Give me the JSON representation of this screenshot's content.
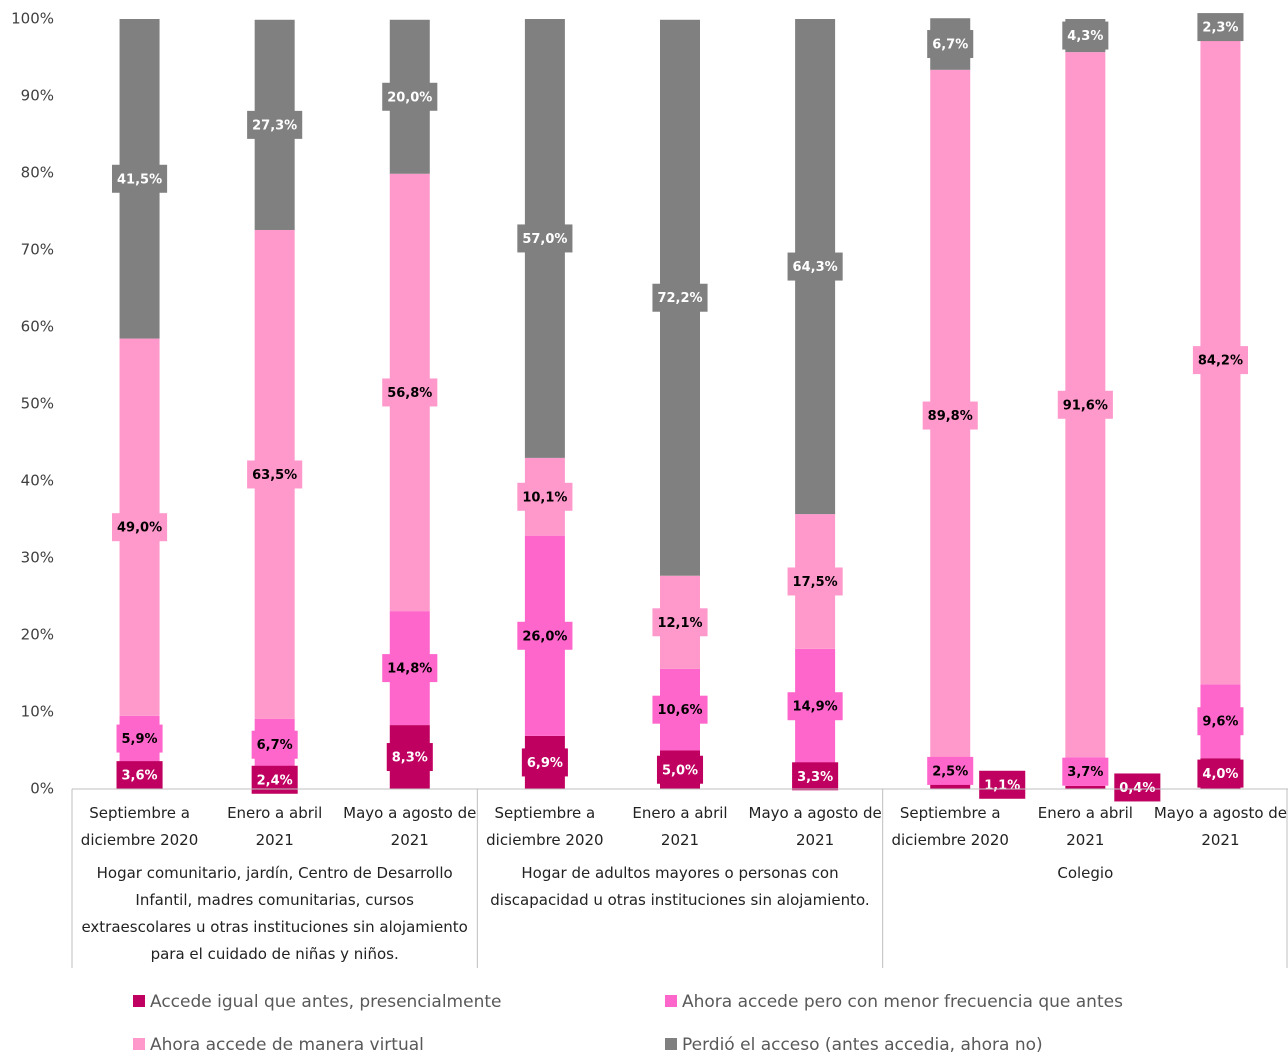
{
  "chart_data": {
    "type": "stacked_bar",
    "categories": [
      "Septiembre a diciembre 2020",
      "Enero a abril 2021",
      "Mayo a agosto de 2021",
      "Septiembre a diciembre 2020",
      "Enero a abril 2021",
      "Mayo a agosto de 2021",
      "Septiembre a diciembre 2020",
      "Enero a abril 2021",
      "Mayo a agosto de 2021"
    ],
    "groups": [
      {
        "name": "Hogar comunitario, jardín, Centro de Desarrollo Infantil, madres comunitarias, cursos extraescolares u otras instituciones sin alojamiento para el cuidado de niñas y niños.",
        "span": 3
      },
      {
        "name": "Hogar de adultos mayores o personas con discapacidad u otras instituciones sin alojamiento.",
        "span": 3
      },
      {
        "name": "Colegio",
        "span": 3
      }
    ],
    "series": [
      {
        "name": "Accede igual que antes, presencialmente",
        "color": "#c00060",
        "values": [
          3.6,
          2.4,
          8.3,
          6.9,
          5.0,
          3.3,
          1.1,
          0.4,
          4.0
        ],
        "value_labels": [
          "3,6%",
          "2,4%",
          "8,3%",
          "6,9%",
          "5,0%",
          "3,3%",
          "1,1%",
          "0,4%",
          "4,0%"
        ]
      },
      {
        "name": "Ahora accede pero con menor frecuencia que antes",
        "color": "#ff66cc",
        "values": [
          5.9,
          6.7,
          14.8,
          26.0,
          10.6,
          14.9,
          2.5,
          3.7,
          9.6
        ],
        "value_labels": [
          "5,9%",
          "6,7%",
          "14,8%",
          "26,0%",
          "10,6%",
          "14,9%",
          "2,5%",
          "3,7%",
          "9,6%"
        ]
      },
      {
        "name": "Ahora accede de manera virtual",
        "color": "#ff99cc",
        "values": [
          49.0,
          63.5,
          56.8,
          10.1,
          12.1,
          17.5,
          89.8,
          91.6,
          84.2
        ],
        "value_labels": [
          "49,0%",
          "63,5%",
          "56,8%",
          "10,1%",
          "12,1%",
          "17,5%",
          "89,8%",
          "91,6%",
          "84,2%"
        ]
      },
      {
        "name": "Perdió el acceso (antes accedia, ahora no)",
        "color": "#808080",
        "values": [
          41.5,
          27.3,
          20.0,
          57.0,
          72.2,
          64.3,
          6.7,
          4.3,
          2.3
        ],
        "value_labels": [
          "41,5%",
          "27,3%",
          "20,0%",
          "57,0%",
          "72,2%",
          "64,3%",
          "6,7%",
          "4,3%",
          "2,3%"
        ]
      }
    ],
    "ylim": [
      0,
      100
    ],
    "yticks": [
      {
        "value": 0,
        "label": "0%"
      },
      {
        "value": 10,
        "label": "10%"
      },
      {
        "value": 20,
        "label": "20%"
      },
      {
        "value": 30,
        "label": "30%"
      },
      {
        "value": 40,
        "label": "40%"
      },
      {
        "value": 50,
        "label": "50%"
      },
      {
        "value": 60,
        "label": "60%"
      },
      {
        "value": 70,
        "label": "70%"
      },
      {
        "value": 80,
        "label": "80%"
      },
      {
        "value": 90,
        "label": "90%"
      },
      {
        "value": 100,
        "label": "100%"
      }
    ],
    "legend": "bottom"
  }
}
